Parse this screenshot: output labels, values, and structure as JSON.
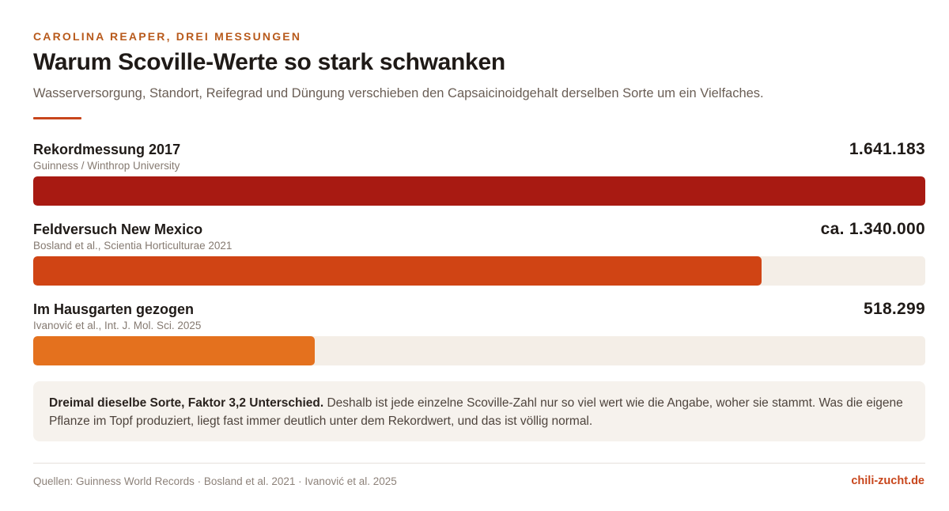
{
  "header": {
    "kicker": "CAROLINA REAPER, DREI MESSUNGEN",
    "title": "Warum Scoville-Werte so stark schwanken",
    "subtitle": "Wasserversorgung, Standort, Reifegrad und Düngung verschieben den Capsaicinoidgehalt derselben Sorte um ein Vielfaches."
  },
  "colors": {
    "accent": "#c8461c",
    "track": "#f4eee7"
  },
  "chart_data": {
    "type": "bar",
    "orientation": "horizontal",
    "categories": [
      "Rekordmessung 2017",
      "Feldversuch New Mexico",
      "Im Hausgarten gezogen"
    ],
    "values": [
      1641183,
      1340000,
      518299
    ],
    "xlim": [
      0,
      1641183
    ],
    "grid": false,
    "bars": [
      {
        "label": "Rekordmessung 2017",
        "source": "Guinness / Winthrop University",
        "value": 1641183,
        "value_label": "1.641.183",
        "color": "#a81a12"
      },
      {
        "label": "Feldversuch New Mexico",
        "source": "Bosland et al., Scientia Horticulturae 2021",
        "value": 1340000,
        "value_label": "ca. 1.340.000",
        "color": "#d04414"
      },
      {
        "label": "Im Hausgarten gezogen",
        "source": "Ivanović et al., Int. J. Mol. Sci. 2025",
        "value": 518299,
        "value_label": "518.299",
        "color": "#e4711e"
      }
    ]
  },
  "note": {
    "lead": "Dreimal dieselbe Sorte, Faktor 3,2 Unterschied.",
    "text": " Deshalb ist jede einzelne Scoville-Zahl nur so viel wert wie die Angabe, woher sie stammt. Was die eigene Pflanze im Topf produziert, liegt fast immer deutlich unter dem Rekordwert, und das ist völlig normal."
  },
  "footer": {
    "sources": "Quellen: Guinness World Records · Bosland et al. 2021 · Ivanović et al. 2025",
    "brand": "chili-zucht.de"
  }
}
